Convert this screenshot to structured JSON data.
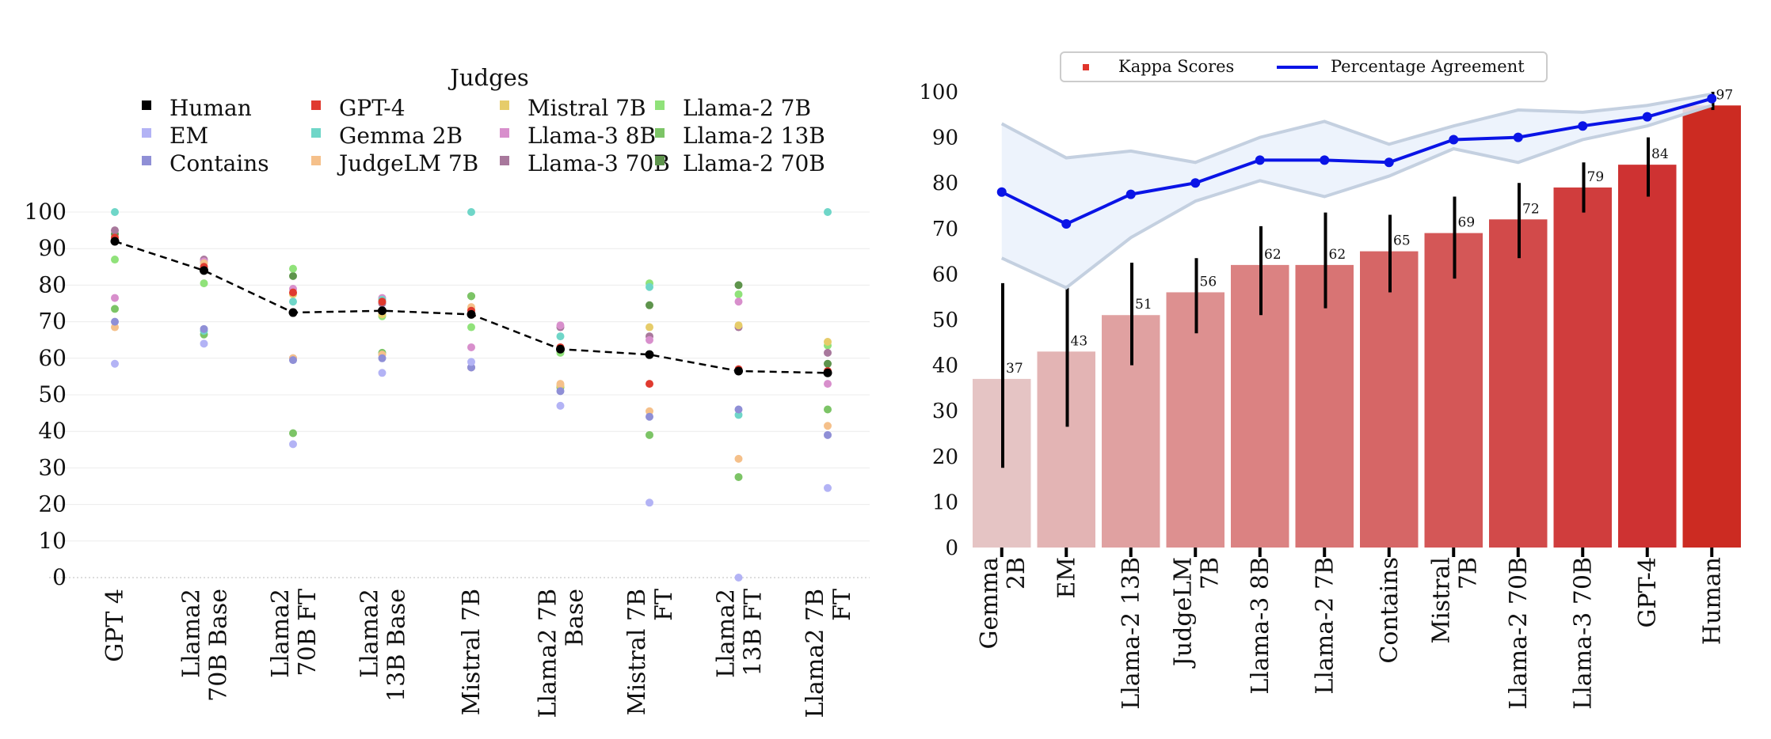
{
  "chart_data": [
    {
      "type": "scatter",
      "legend_title": "Judges",
      "legend_placement": "top",
      "grid": true,
      "ylim": [
        0,
        100
      ],
      "yticks": [
        0,
        10,
        20,
        30,
        40,
        50,
        60,
        70,
        80,
        90,
        100
      ],
      "categories": [
        [
          "GPT 4"
        ],
        [
          "Llama2",
          "70B Base"
        ],
        [
          "Llama2",
          "70B FT"
        ],
        [
          "Llama2",
          "13B Base"
        ],
        [
          "Mistral 7B"
        ],
        [
          "Llama2 7B",
          "Base"
        ],
        [
          "Mistral 7B",
          "FT"
        ],
        [
          "Llama2",
          "13B FT"
        ],
        [
          "Llama2 7B",
          "FT"
        ]
      ],
      "series": [
        {
          "name": "Human",
          "color": "#000000",
          "line": "dashed",
          "values": [
            92,
            84,
            72.5,
            73,
            72,
            62.5,
            61,
            56.5,
            56
          ]
        },
        {
          "name": "EM",
          "color": "#b3b3f5",
          "values": [
            58.5,
            64,
            36.5,
            56,
            59,
            47,
            20.5,
            0,
            24.5
          ]
        },
        {
          "name": "Contains",
          "color": "#8f8fd6",
          "values": [
            70,
            68,
            59.5,
            60,
            57.5,
            51,
            44,
            46,
            39
          ]
        },
        {
          "name": "GPT-4",
          "color": "#e03a2f",
          "values": [
            93,
            85,
            78,
            75.5,
            73,
            63,
            53,
            57,
            56.5
          ]
        },
        {
          "name": "Gemma 2B",
          "color": "#6fd6c8",
          "values": [
            100,
            67.5,
            75.5,
            76,
            100,
            66,
            79.5,
            44.5,
            100
          ]
        },
        {
          "name": "JudgeLM 7B",
          "color": "#f5c08a",
          "values": [
            68.5,
            86,
            60,
            61,
            74,
            53,
            45.5,
            32.5,
            41.5
          ]
        },
        {
          "name": "Mistral 7B",
          "color": "#e6cc6a",
          "values": [
            92,
            84.5,
            77.5,
            72,
            73.5,
            52.5,
            68.5,
            69,
            64.5
          ]
        },
        {
          "name": "Llama-3 8B",
          "color": "#d88fcc",
          "values": [
            76.5,
            86.5,
            79,
            76.5,
            63,
            69,
            65,
            75.5,
            53
          ]
        },
        {
          "name": "Llama-3 70B",
          "color": "#a8789c",
          "values": [
            95,
            87,
            60,
            75,
            57.5,
            68.5,
            66,
            68.5,
            61.5
          ]
        },
        {
          "name": "Llama-2 7B",
          "color": "#90e27a",
          "values": [
            87,
            80.5,
            84.5,
            71.5,
            68.5,
            61.5,
            80.5,
            77.5,
            63.5
          ]
        },
        {
          "name": "Llama-2 13B",
          "color": "#7cc466",
          "values": [
            73.5,
            66.5,
            39.5,
            61.5,
            77,
            52,
            39,
            27.5,
            46
          ]
        },
        {
          "name": "Llama-2 70B",
          "color": "#5e944c",
          "values": [
            94,
            84.5,
            82.5,
            73,
            77,
            62,
            74.5,
            80,
            58.5
          ]
        }
      ]
    },
    {
      "type": "bar",
      "legend_placement": "top",
      "ylim": [
        0,
        100
      ],
      "yticks": [
        0,
        10,
        20,
        30,
        40,
        50,
        60,
        70,
        80,
        90,
        100
      ],
      "categories": [
        [
          "Gemma",
          "2B"
        ],
        [
          "EM"
        ],
        [
          "Llama-2 13B"
        ],
        [
          "JudgeLM",
          "7B"
        ],
        [
          "Llama-3 8B"
        ],
        [
          "Llama-2 7B"
        ],
        [
          "Contains"
        ],
        [
          "Mistral",
          "7B"
        ],
        [
          "Llama-2 70B"
        ],
        [
          "Llama-3 70B"
        ],
        [
          "GPT-4"
        ],
        [
          "Human"
        ]
      ],
      "series": [
        {
          "name": "Kappa Scores",
          "color": "#e0352b",
          "values": [
            37,
            43,
            51,
            56,
            62,
            62,
            65,
            69,
            72,
            79,
            84,
            97
          ],
          "labels": [
            "37",
            "43",
            "51",
            "56",
            "62",
            "62",
            "65",
            "69",
            "72",
            "79",
            "84",
            "97"
          ],
          "colors": [
            "#e5c4c4",
            "#e3b4b4",
            "#e0a1a1",
            "#dd9090",
            "#db8282",
            "#d87474",
            "#d66666",
            "#d45757",
            "#d24a4a",
            "#d03d3d",
            "#ce3232",
            "#cc2b22"
          ],
          "error_low": [
            17.5,
            26.5,
            40,
            47,
            51,
            52.5,
            56,
            59,
            63.5,
            73.5,
            77,
            96
          ],
          "error_high": [
            58,
            57.5,
            62.5,
            63.5,
            70.5,
            73.5,
            73,
            77,
            80,
            84.5,
            90,
            100
          ]
        },
        {
          "name": "Percentage Agreement",
          "color": "#0a14e6",
          "band_color": "#c4d0e0",
          "values": [
            78,
            71,
            77.5,
            80,
            85,
            85,
            84.5,
            89.5,
            90,
            92.5,
            94.5,
            98.5
          ],
          "band_low": [
            63.5,
            57,
            68,
            76,
            80.5,
            77,
            81.5,
            87.5,
            84.5,
            89.5,
            92.5,
            97
          ],
          "band_high": [
            93,
            85.5,
            87,
            84.5,
            90,
            93.5,
            88.5,
            92.5,
            96,
            95.5,
            97,
            99.5
          ]
        }
      ]
    }
  ]
}
